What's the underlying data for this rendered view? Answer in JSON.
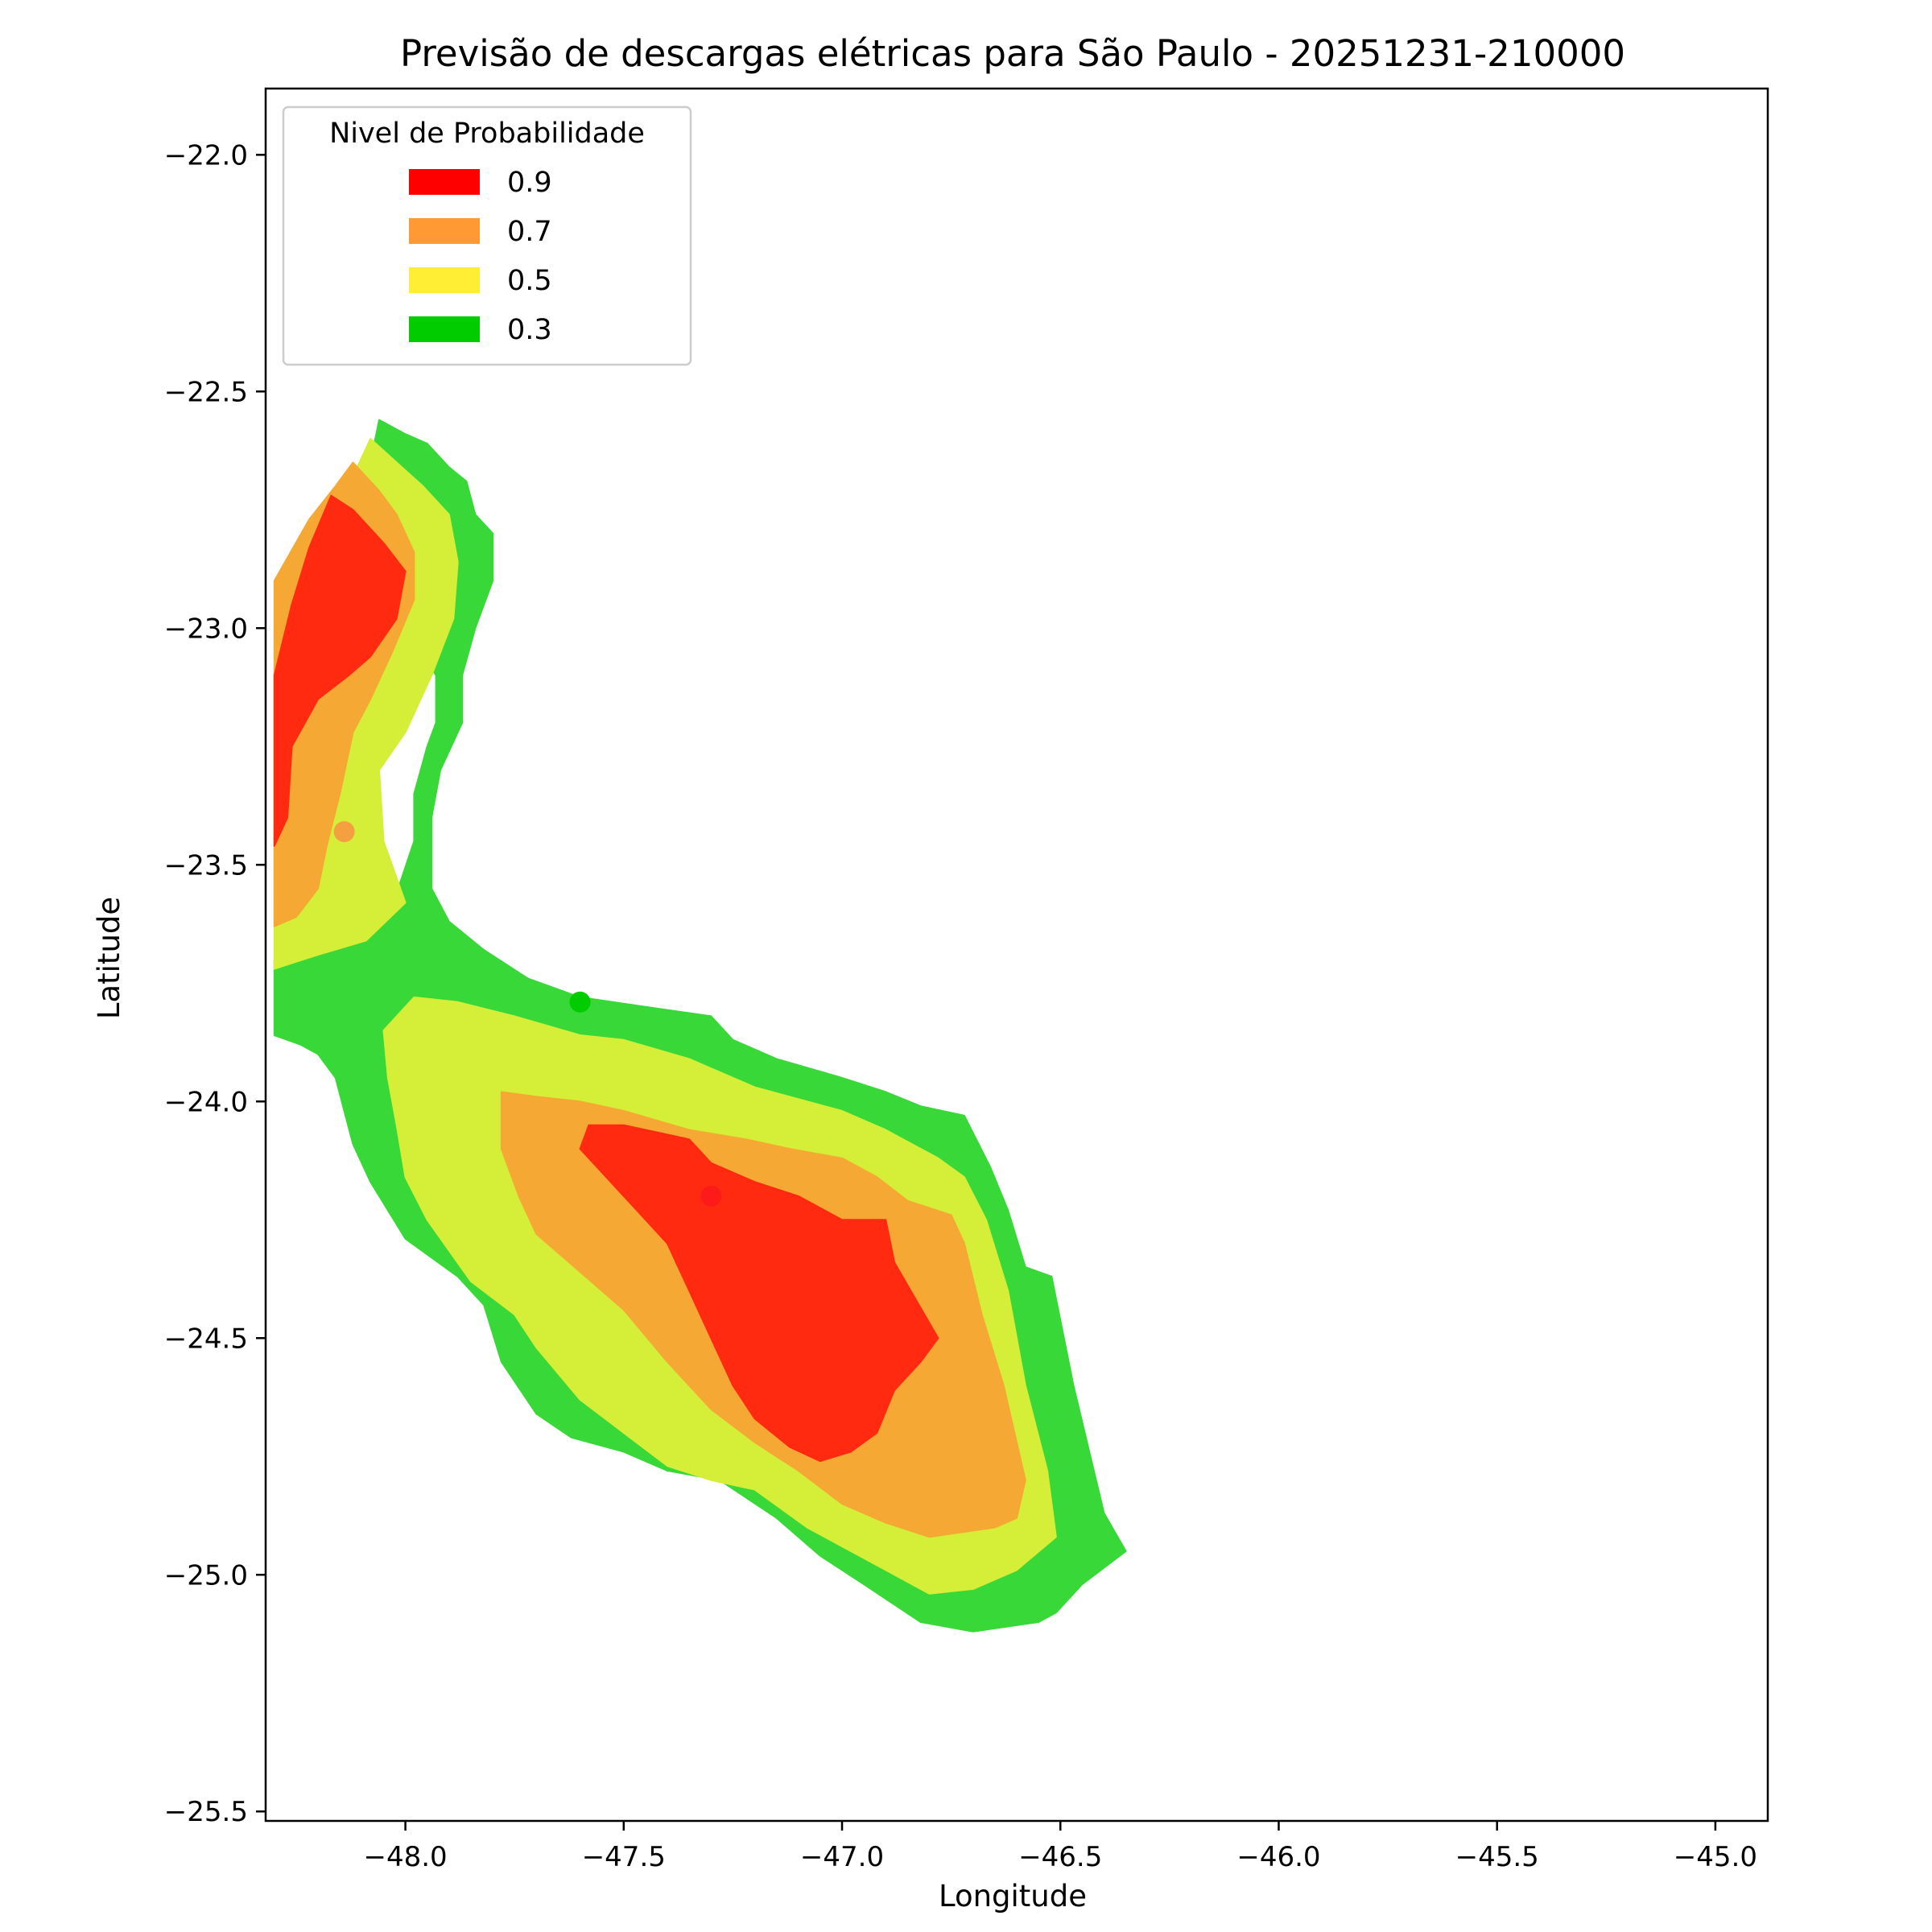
{
  "chart_data": {
    "type": "contour-map",
    "title": "Previsão de descargas elétricas para São Paulo - 20251231-210000",
    "xlabel": "Longitude",
    "ylabel": "Latitude",
    "xlim": [
      -48.32,
      -44.88
    ],
    "ylim": [
      -25.52,
      -21.86
    ],
    "x_ticks": [
      -48.0,
      -47.5,
      -47.0,
      -46.5,
      -46.0,
      -45.5,
      -45.0
    ],
    "x_tick_labels": [
      "−48.0",
      "−47.5",
      "−47.0",
      "−46.5",
      "−46.0",
      "−45.5",
      "−45.0"
    ],
    "y_ticks": [
      -22.0,
      -22.5,
      -23.0,
      -23.5,
      -24.0,
      -24.5,
      -25.0,
      -25.5
    ],
    "y_tick_labels": [
      "−22.0",
      "−22.5",
      "−23.0",
      "−23.5",
      "−24.0",
      "−24.5",
      "−25.0",
      "−25.5"
    ],
    "legend": {
      "title": "Nivel de Probabilidade",
      "placement": "upper-left",
      "entries": [
        {
          "label": "0.9",
          "color": "#ff0000"
        },
        {
          "label": "0.7",
          "color": "#ff9933"
        },
        {
          "label": "0.5",
          "color": "#ffee33"
        },
        {
          "label": "0.3",
          "color": "#00cc00"
        }
      ]
    },
    "fill_colors": {
      "0.9": "#ff2a10",
      "0.7": "#f5a833",
      "0.5": "#d5ee38",
      "0.3": "#38d838"
    },
    "points": [
      {
        "lon": -48.14,
        "lat": -23.43,
        "level": "0.7",
        "color": "#f5a040"
      },
      {
        "lon": -47.6,
        "lat": -23.79,
        "level": "0.3",
        "color": "#00cc00"
      },
      {
        "lon": -47.3,
        "lat": -24.2,
        "level": "0.9",
        "color": "#ff1a1a"
      }
    ],
    "regions": [
      {
        "level": "0.3",
        "polygons": [
          [
            [
              -48.06,
              -22.56
            ],
            [
              -48.0,
              -22.59
            ],
            [
              -47.95,
              -22.61
            ],
            [
              -47.9,
              -22.66
            ],
            [
              -47.86,
              -22.69
            ],
            [
              -47.84,
              -22.76
            ],
            [
              -47.8,
              -22.8
            ],
            [
              -47.8,
              -22.9
            ],
            [
              -47.84,
              -23.0
            ],
            [
              -47.87,
              -23.1
            ],
            [
              -47.87,
              -23.2
            ],
            [
              -47.92,
              -23.3
            ],
            [
              -47.94,
              -23.4
            ],
            [
              -47.94,
              -23.55
            ],
            [
              -47.9,
              -23.62
            ],
            [
              -47.82,
              -23.68
            ],
            [
              -47.72,
              -23.74
            ],
            [
              -47.6,
              -23.78
            ],
            [
              -47.45,
              -23.8
            ],
            [
              -47.3,
              -23.82
            ],
            [
              -47.25,
              -23.87
            ],
            [
              -47.15,
              -23.91
            ],
            [
              -47.0,
              -23.95
            ],
            [
              -46.9,
              -23.98
            ],
            [
              -46.82,
              -24.01
            ],
            [
              -46.72,
              -24.03
            ],
            [
              -46.66,
              -24.14
            ],
            [
              -46.62,
              -24.23
            ],
            [
              -46.58,
              -24.35
            ],
            [
              -46.52,
              -24.37
            ],
            [
              -46.47,
              -24.6
            ],
            [
              -46.4,
              -24.87
            ],
            [
              -46.35,
              -24.95
            ],
            [
              -46.45,
              -25.02
            ],
            [
              -46.51,
              -25.08
            ],
            [
              -46.55,
              -25.1
            ],
            [
              -46.7,
              -25.12
            ],
            [
              -46.82,
              -25.1
            ],
            [
              -46.95,
              -25.02
            ],
            [
              -47.05,
              -24.96
            ],
            [
              -47.15,
              -24.88
            ],
            [
              -47.28,
              -24.8
            ],
            [
              -47.4,
              -24.78
            ],
            [
              -47.5,
              -24.74
            ],
            [
              -47.62,
              -24.71
            ],
            [
              -47.7,
              -24.66
            ],
            [
              -47.78,
              -24.55
            ],
            [
              -47.82,
              -24.43
            ],
            [
              -47.88,
              -24.37
            ],
            [
              -48.0,
              -24.29
            ],
            [
              -48.08,
              -24.17
            ],
            [
              -48.12,
              -24.09
            ],
            [
              -48.14,
              -24.02
            ],
            [
              -48.16,
              -23.95
            ],
            [
              -48.2,
              -23.9
            ],
            [
              -48.24,
              -23.88
            ],
            [
              -48.3,
              -23.86
            ],
            [
              -48.3,
              -23.7
            ],
            [
              -48.2,
              -23.68
            ],
            [
              -48.1,
              -23.62
            ],
            [
              -48.02,
              -23.56
            ],
            [
              -47.98,
              -23.45
            ],
            [
              -47.98,
              -23.35
            ],
            [
              -47.95,
              -23.25
            ],
            [
              -47.93,
              -23.2
            ],
            [
              -47.93,
              -23.1
            ],
            [
              -48.02,
              -22.95
            ],
            [
              -48.06,
              -22.8
            ],
            [
              -48.08,
              -22.65
            ]
          ]
        ]
      },
      {
        "level": "0.5",
        "polygons": [
          [
            [
              -48.08,
              -22.6
            ],
            [
              -48.02,
              -22.65
            ],
            [
              -47.96,
              -22.7
            ],
            [
              -47.9,
              -22.76
            ],
            [
              -47.88,
              -22.86
            ],
            [
              -47.89,
              -22.98
            ],
            [
              -47.94,
              -23.1
            ],
            [
              -48.0,
              -23.22
            ],
            [
              -48.06,
              -23.3
            ],
            [
              -48.05,
              -23.45
            ],
            [
              -48.0,
              -23.58
            ],
            [
              -48.09,
              -23.66
            ],
            [
              -48.2,
              -23.69
            ],
            [
              -48.3,
              -23.72
            ],
            [
              -48.3,
              -23.1
            ],
            [
              -48.22,
              -22.95
            ],
            [
              -48.17,
              -22.78
            ],
            [
              -48.12,
              -22.68
            ]
          ],
          [
            [
              -47.98,
              -23.78
            ],
            [
              -47.88,
              -23.79
            ],
            [
              -47.75,
              -23.82
            ],
            [
              -47.6,
              -23.86
            ],
            [
              -47.5,
              -23.87
            ],
            [
              -47.35,
              -23.91
            ],
            [
              -47.2,
              -23.97
            ],
            [
              -47.0,
              -24.02
            ],
            [
              -46.9,
              -24.06
            ],
            [
              -46.78,
              -24.12
            ],
            [
              -46.72,
              -24.16
            ],
            [
              -46.67,
              -24.25
            ],
            [
              -46.62,
              -24.4
            ],
            [
              -46.58,
              -24.6
            ],
            [
              -46.53,
              -24.78
            ],
            [
              -46.51,
              -24.92
            ],
            [
              -46.6,
              -24.99
            ],
            [
              -46.7,
              -25.03
            ],
            [
              -46.8,
              -25.04
            ],
            [
              -46.9,
              -24.99
            ],
            [
              -47.0,
              -24.94
            ],
            [
              -47.08,
              -24.9
            ],
            [
              -47.2,
              -24.82
            ],
            [
              -47.3,
              -24.8
            ],
            [
              -47.4,
              -24.77
            ],
            [
              -47.5,
              -24.7
            ],
            [
              -47.6,
              -24.63
            ],
            [
              -47.7,
              -24.52
            ],
            [
              -47.75,
              -24.45
            ],
            [
              -47.85,
              -24.38
            ],
            [
              -47.95,
              -24.25
            ],
            [
              -48.0,
              -24.16
            ],
            [
              -48.02,
              -24.05
            ],
            [
              -48.04,
              -23.95
            ],
            [
              -48.05,
              -23.85
            ]
          ]
        ]
      },
      {
        "level": "0.7",
        "polygons": [
          [
            [
              -48.12,
              -22.65
            ],
            [
              -48.06,
              -22.71
            ],
            [
              -48.02,
              -22.76
            ],
            [
              -47.98,
              -22.84
            ],
            [
              -47.98,
              -22.94
            ],
            [
              -48.03,
              -23.05
            ],
            [
              -48.08,
              -23.15
            ],
            [
              -48.12,
              -23.22
            ],
            [
              -48.15,
              -23.35
            ],
            [
              -48.18,
              -23.46
            ],
            [
              -48.2,
              -23.55
            ],
            [
              -48.25,
              -23.61
            ],
            [
              -48.3,
              -23.63
            ],
            [
              -48.3,
              -22.9
            ],
            [
              -48.22,
              -22.77
            ],
            [
              -48.16,
              -22.7
            ]
          ],
          [
            [
              -47.78,
              -23.98
            ],
            [
              -47.7,
              -23.99
            ],
            [
              -47.6,
              -24.0
            ],
            [
              -47.5,
              -24.02
            ],
            [
              -47.35,
              -24.06
            ],
            [
              -47.22,
              -24.08
            ],
            [
              -47.12,
              -24.1
            ],
            [
              -47.0,
              -24.12
            ],
            [
              -46.92,
              -24.16
            ],
            [
              -46.85,
              -24.21
            ],
            [
              -46.75,
              -24.24
            ],
            [
              -46.72,
              -24.3
            ],
            [
              -46.68,
              -24.45
            ],
            [
              -46.63,
              -24.6
            ],
            [
              -46.58,
              -24.8
            ],
            [
              -46.6,
              -24.88
            ],
            [
              -46.65,
              -24.9
            ],
            [
              -46.8,
              -24.92
            ],
            [
              -46.9,
              -24.89
            ],
            [
              -47.0,
              -24.85
            ],
            [
              -47.1,
              -24.78
            ],
            [
              -47.2,
              -24.72
            ],
            [
              -47.3,
              -24.65
            ],
            [
              -47.4,
              -24.55
            ],
            [
              -47.5,
              -24.44
            ],
            [
              -47.6,
              -24.36
            ],
            [
              -47.7,
              -24.28
            ],
            [
              -47.74,
              -24.2
            ],
            [
              -47.78,
              -24.1
            ]
          ]
        ]
      },
      {
        "level": "0.9",
        "polygons": [
          [
            [
              -48.17,
              -22.72
            ],
            [
              -48.12,
              -22.75
            ],
            [
              -48.05,
              -22.82
            ],
            [
              -48.0,
              -22.88
            ],
            [
              -48.02,
              -22.98
            ],
            [
              -48.08,
              -23.06
            ],
            [
              -48.13,
              -23.1
            ],
            [
              -48.2,
              -23.15
            ],
            [
              -48.26,
              -23.25
            ],
            [
              -48.27,
              -23.4
            ],
            [
              -48.3,
              -23.46
            ],
            [
              -48.3,
              -23.1
            ],
            [
              -48.26,
              -22.95
            ],
            [
              -48.22,
              -22.83
            ]
          ],
          [
            [
              -47.58,
              -24.05
            ],
            [
              -47.5,
              -24.05
            ],
            [
              -47.4,
              -24.07
            ],
            [
              -47.35,
              -24.08
            ],
            [
              -47.3,
              -24.13
            ],
            [
              -47.2,
              -24.17
            ],
            [
              -47.1,
              -24.2
            ],
            [
              -47.0,
              -24.25
            ],
            [
              -46.9,
              -24.25
            ],
            [
              -46.88,
              -24.34
            ],
            [
              -46.83,
              -24.42
            ],
            [
              -46.78,
              -24.5
            ],
            [
              -46.82,
              -24.55
            ],
            [
              -46.88,
              -24.61
            ],
            [
              -46.92,
              -24.7
            ],
            [
              -46.98,
              -24.74
            ],
            [
              -47.05,
              -24.76
            ],
            [
              -47.12,
              -24.73
            ],
            [
              -47.2,
              -24.67
            ],
            [
              -47.25,
              -24.6
            ],
            [
              -47.3,
              -24.5
            ],
            [
              -47.35,
              -24.4
            ],
            [
              -47.4,
              -24.3
            ],
            [
              -47.48,
              -24.22
            ],
            [
              -47.55,
              -24.15
            ],
            [
              -47.6,
              -24.1
            ]
          ]
        ]
      }
    ]
  }
}
